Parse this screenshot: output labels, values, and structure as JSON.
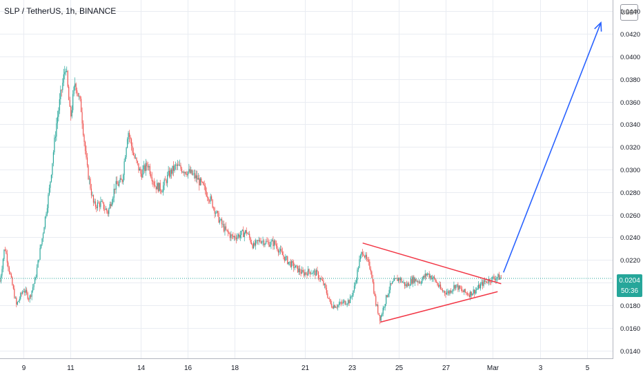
{
  "chart_data": {
    "type": "candlestick",
    "title": "SLP / TetherUS, 1h, BINANCE",
    "quote_currency": "USDT",
    "y_ticks": [
      "0.0140",
      "0.0160",
      "0.0180",
      "0.0200",
      "0.0220",
      "0.0240",
      "0.0260",
      "0.0280",
      "0.0300",
      "0.0320",
      "0.0340",
      "0.0360",
      "0.0380",
      "0.0400",
      "0.0420",
      "0.0440"
    ],
    "ylim": [
      0.0133,
      0.045
    ],
    "x_ticks": [
      "9",
      "11",
      "14",
      "16",
      "18",
      "21",
      "23",
      "25",
      "27",
      "Mar",
      "3",
      "5"
    ],
    "x_tick_days": [
      9,
      11,
      14,
      16,
      18,
      21,
      23,
      25,
      27,
      29,
      31,
      33
    ],
    "xlim_days": [
      8.0,
      34.1
    ],
    "current_price": "0.0204",
    "countdown": "50:36",
    "current_price_value": 0.0204,
    "colors": {
      "up": "#26a69a",
      "down": "#ef5350",
      "triangle": "#f23645",
      "arrow": "#2962ff",
      "grid": "#e9ecf2"
    },
    "price_path": [
      [
        8.0,
        0.0201
      ],
      [
        8.2,
        0.0232
      ],
      [
        8.45,
        0.0205
      ],
      [
        8.7,
        0.018
      ],
      [
        9.0,
        0.0194
      ],
      [
        9.25,
        0.0186
      ],
      [
        9.5,
        0.0203
      ],
      [
        9.8,
        0.024
      ],
      [
        10.1,
        0.0282
      ],
      [
        10.4,
        0.034
      ],
      [
        10.6,
        0.0368
      ],
      [
        10.8,
        0.0392
      ],
      [
        11.0,
        0.0345
      ],
      [
        11.2,
        0.0378
      ],
      [
        11.45,
        0.0355
      ],
      [
        11.7,
        0.0302
      ],
      [
        12.0,
        0.0268
      ],
      [
        12.3,
        0.027
      ],
      [
        12.6,
        0.0262
      ],
      [
        12.9,
        0.0285
      ],
      [
        13.2,
        0.029
      ],
      [
        13.45,
        0.0335
      ],
      [
        13.7,
        0.0312
      ],
      [
        14.0,
        0.0296
      ],
      [
        14.3,
        0.0305
      ],
      [
        14.6,
        0.0286
      ],
      [
        14.9,
        0.0283
      ],
      [
        15.2,
        0.0296
      ],
      [
        15.5,
        0.0303
      ],
      [
        15.8,
        0.03
      ],
      [
        16.1,
        0.0297
      ],
      [
        16.4,
        0.0292
      ],
      [
        16.7,
        0.0283
      ],
      [
        17.0,
        0.0272
      ],
      [
        17.3,
        0.0257
      ],
      [
        17.6,
        0.0246
      ],
      [
        17.9,
        0.024
      ],
      [
        18.2,
        0.0242
      ],
      [
        18.5,
        0.0245
      ],
      [
        18.8,
        0.0232
      ],
      [
        19.1,
        0.0238
      ],
      [
        19.4,
        0.0235
      ],
      [
        19.7,
        0.0235
      ],
      [
        20.0,
        0.0225
      ],
      [
        20.3,
        0.0218
      ],
      [
        20.6,
        0.0213
      ],
      [
        20.9,
        0.0208
      ],
      [
        21.2,
        0.021
      ],
      [
        21.5,
        0.0208
      ],
      [
        21.8,
        0.0198
      ],
      [
        22.1,
        0.018
      ],
      [
        22.4,
        0.018
      ],
      [
        22.7,
        0.0183
      ],
      [
        22.9,
        0.0184
      ],
      [
        23.1,
        0.0196
      ],
      [
        23.3,
        0.0218
      ],
      [
        23.45,
        0.0229
      ],
      [
        23.6,
        0.022
      ],
      [
        23.8,
        0.0212
      ],
      [
        24.0,
        0.0182
      ],
      [
        24.2,
        0.0168
      ],
      [
        24.4,
        0.0183
      ],
      [
        24.6,
        0.0196
      ],
      [
        24.8,
        0.0201
      ],
      [
        25.0,
        0.0204
      ],
      [
        25.3,
        0.0197
      ],
      [
        25.6,
        0.0203
      ],
      [
        25.9,
        0.0201
      ],
      [
        26.2,
        0.0208
      ],
      [
        26.5,
        0.0203
      ],
      [
        26.8,
        0.0193
      ],
      [
        27.1,
        0.0191
      ],
      [
        27.4,
        0.0198
      ],
      [
        27.7,
        0.0192
      ],
      [
        28.0,
        0.019
      ],
      [
        28.3,
        0.0194
      ],
      [
        28.6,
        0.02
      ],
      [
        28.9,
        0.0203
      ],
      [
        29.2,
        0.0205
      ],
      [
        29.35,
        0.0204
      ]
    ],
    "annotations": [
      {
        "type": "trendline",
        "name": "triangle-upper",
        "from": [
          23.45,
          0.0235
        ],
        "to": [
          29.35,
          0.0199
        ]
      },
      {
        "type": "trendline",
        "name": "triangle-lower",
        "from": [
          24.2,
          0.0165
        ],
        "to": [
          29.2,
          0.0192
        ]
      },
      {
        "type": "arrow",
        "name": "projection-arrow",
        "from": [
          29.45,
          0.0209
        ],
        "to": [
          33.6,
          0.043
        ]
      }
    ]
  }
}
